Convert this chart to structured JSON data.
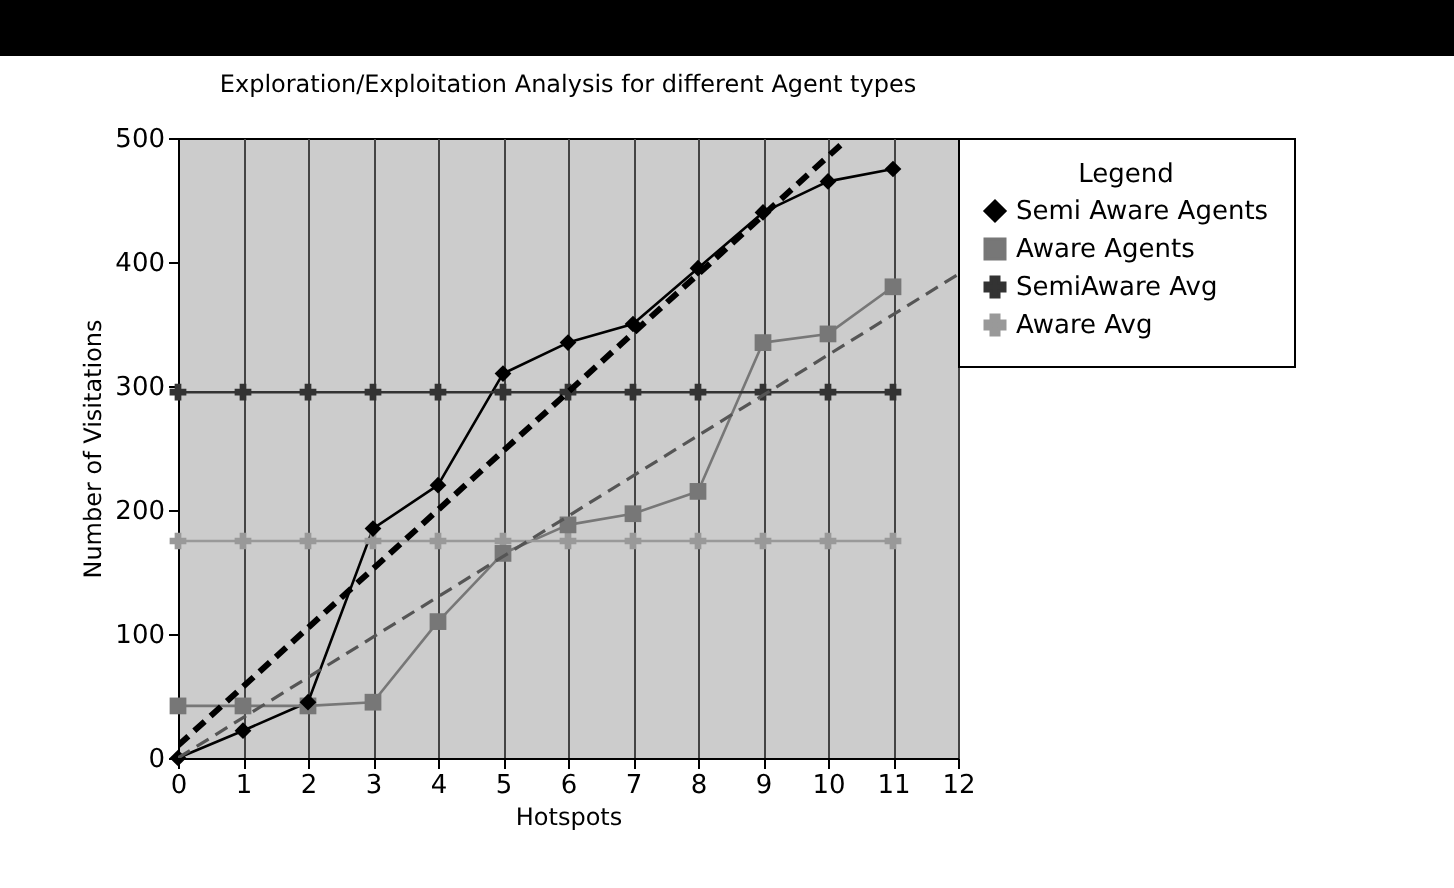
{
  "chart_data": {
    "type": "line",
    "title": "Exploration/Exploitation Analysis for different Agent types",
    "xlabel": "Hotspots",
    "ylabel": "Number of Visitations",
    "legend_title": "Legend",
    "legend": "right",
    "grid": "x",
    "xlim": [
      0,
      12
    ],
    "xticks": [
      0,
      1,
      2,
      3,
      4,
      5,
      6,
      7,
      8,
      9,
      10,
      11,
      12
    ],
    "ylim": [
      0,
      500
    ],
    "yticks": [
      0,
      100,
      200,
      300,
      400,
      500
    ],
    "x": [
      0,
      1,
      2,
      3,
      4,
      5,
      6,
      7,
      8,
      9,
      10,
      11
    ],
    "series": [
      {
        "name": "Semi Aware Agents",
        "color": "#000000",
        "marker": "diamond",
        "values": [
          0,
          22,
          45,
          185,
          220,
          310,
          335,
          350,
          395,
          440,
          465,
          475
        ]
      },
      {
        "name": "Aware Agents",
        "color": "#777777",
        "marker": "square",
        "values": [
          42,
          42,
          42,
          45,
          110,
          165,
          188,
          197,
          215,
          335,
          342,
          380
        ]
      },
      {
        "name": "SemiAware Avg",
        "color": "#333333",
        "marker": "cross",
        "values": [
          295,
          295,
          295,
          295,
          295,
          295,
          295,
          295,
          295,
          295,
          295,
          295
        ]
      },
      {
        "name": "Aware Avg",
        "color": "#999999",
        "marker": "cross",
        "values": [
          175,
          175,
          175,
          175,
          175,
          175,
          175,
          175,
          175,
          175,
          175,
          175
        ]
      },
      {
        "type": "line",
        "color": "#000000",
        "line_style": "dashed",
        "x": [
          0,
          10.25
        ],
        "values": [
          10,
          497
        ]
      },
      {
        "type": "line",
        "color": "#555555",
        "line_style": "dashed",
        "x": [
          0,
          12
        ],
        "values": [
          0,
          390
        ]
      }
    ]
  }
}
